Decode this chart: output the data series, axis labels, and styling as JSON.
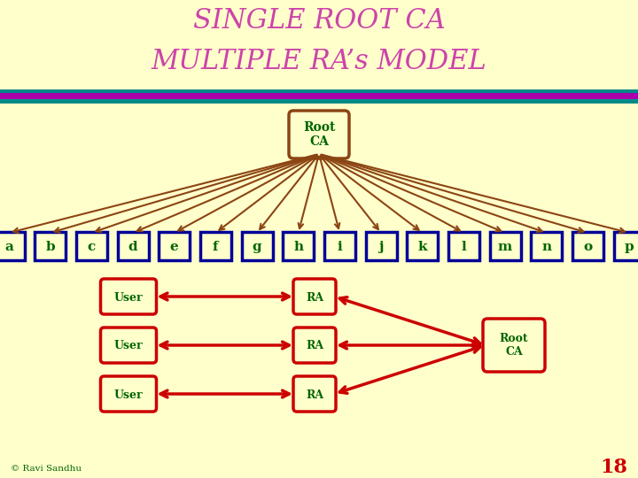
{
  "background_color": "#FFFFCC",
  "title_line1": "SINGLE ROOT CA",
  "title_line2": "MULTIPLE RA’s MODEL",
  "title_color": "#CC44AA",
  "title_fontsize": 22,
  "root_ca_box_color": "#8B4513",
  "root_ca_text_color": "#006600",
  "node_labels": [
    "a",
    "b",
    "c",
    "d",
    "e",
    "f",
    "g",
    "h",
    "i",
    "j",
    "k",
    "l",
    "m",
    "n",
    "o",
    "p"
  ],
  "node_box_color": "#000099",
  "node_text_color": "#006600",
  "arrow_color": "#8B4513",
  "bottom_user_labels": [
    "User",
    "User",
    "User"
  ],
  "bottom_ra_labels": [
    "RA",
    "RA",
    "RA"
  ],
  "bottom_rootca_label": "Root\nCA",
  "bottom_box_color": "#CC0000",
  "bottom_text_color": "#006600",
  "bottom_arrow_color": "#CC0000",
  "footer_text": "© Ravi Sandhu",
  "footer_color": "#006600",
  "page_number": "18",
  "page_number_color": "#CC0000"
}
